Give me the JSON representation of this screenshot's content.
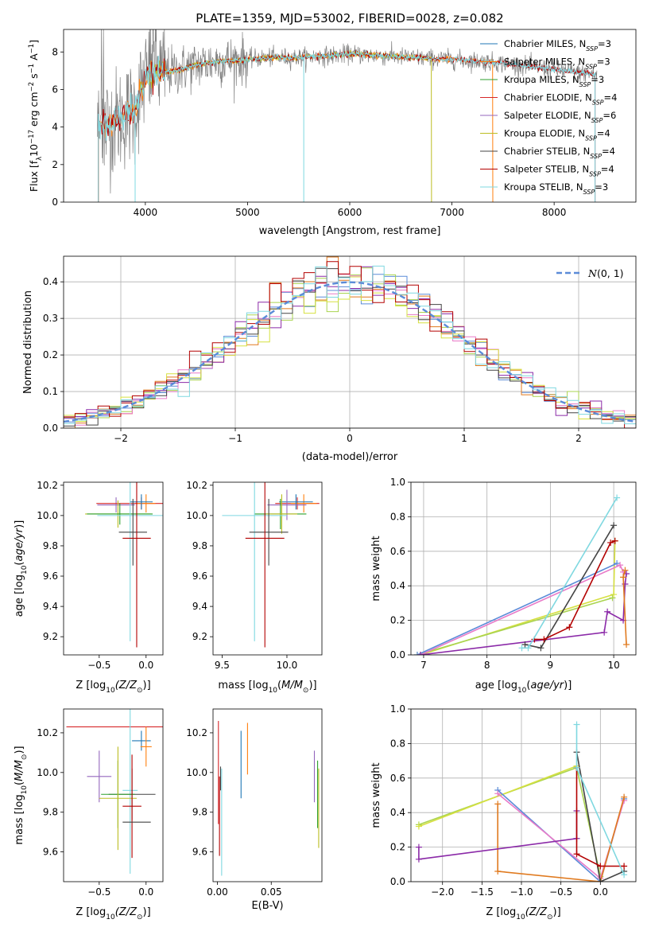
{
  "figure_title": "PLATE=1359, MJD=53002, FIBERID=0028, z=0.082",
  "colors": {
    "Chabrier MILES": "#1f77b4",
    "Salpeter MILES": "#ff7f0e",
    "Kroupa MILES": "#2ca02c",
    "Chabrier ELODIE": "#d62728",
    "Salpeter ELODIE": "#9467bd",
    "Kroupa ELODIE": "#bcbd22",
    "Chabrier STELIB": "#444444",
    "Salpeter STELIB": "#b30000",
    "Kroupa STELIB": "#7fd8e0",
    "Chabrier MILES mw": "#5b8bd8",
    "Salpeter MILES mw": "#e07a1f",
    "Kroupa MILES mw": "#aad450",
    "Chabrier ELODIE mw": "#e87ac8",
    "Salpeter ELODIE mw": "#8b2aa8",
    "Kroupa ELODIE mw": "#d6e040",
    "data": "#808080"
  },
  "chart_data": [
    {
      "id": "spectrum",
      "type": "line",
      "xlabel": "wavelength [Angstrom, rest frame]",
      "ylabel_parts": [
        "Flux [f",
        "λ",
        "10",
        "−17",
        " erg cm",
        "−2",
        " s",
        "−1",
        " A",
        "−1",
        "]"
      ],
      "xlim": [
        3200,
        8800
      ],
      "ylim": [
        0,
        9.2
      ],
      "xticks": [
        4000,
        5000,
        6000,
        7000,
        8000
      ],
      "yticks": [
        0,
        2,
        4,
        6,
        8
      ],
      "legend": [
        {
          "label": "Chabrier MILES",
          "nssp": "3"
        },
        {
          "label": "Salpeter MILES",
          "nssp": "3"
        },
        {
          "label": "Kroupa MILES",
          "nssp": "3"
        },
        {
          "label": "Chabrier ELODIE",
          "nssp": "4"
        },
        {
          "label": "Salpeter ELODIE",
          "nssp": "6"
        },
        {
          "label": "Kroupa ELODIE",
          "nssp": "4"
        },
        {
          "label": "Chabrier STELIB",
          "nssp": "4"
        },
        {
          "label": "Salpeter STELIB",
          "nssp": "4"
        },
        {
          "label": "Kroupa STELIB",
          "nssp": "3"
        }
      ],
      "legend_sub": "SSP",
      "legend_prefix": "N",
      "legend_placement": "upper right",
      "continuum": {
        "x": [
          3520,
          3600,
          3700,
          3800,
          3900,
          3950,
          4000,
          4100,
          4300,
          4500,
          4700,
          5000,
          5200,
          5500,
          5800,
          6000,
          6300,
          6600,
          7000,
          7300,
          7500,
          7800,
          8100,
          8400
        ],
        "y": [
          3.9,
          4.1,
          4.3,
          4.6,
          4.9,
          5.8,
          6.6,
          6.9,
          7.0,
          7.3,
          7.5,
          7.6,
          7.7,
          7.7,
          7.8,
          7.9,
          7.8,
          7.7,
          7.6,
          7.5,
          7.4,
          7.2,
          7.0,
          6.8
        ]
      },
      "model_ranges": {
        "MILES": [
          3540,
          7400
        ],
        "ELODIE": [
          3900,
          6800
        ],
        "STELIB": [
          3540,
          8400
        ]
      }
    },
    {
      "id": "residuals",
      "type": "histogram",
      "xlabel": "(data-model)/error",
      "ylabel": "Normed distribution",
      "xlim": [
        -2.5,
        2.5
      ],
      "ylim": [
        0,
        0.47
      ],
      "xticks": [
        -2,
        -1,
        0,
        1,
        2
      ],
      "yticks": [
        0.0,
        0.1,
        0.2,
        0.3,
        0.4
      ],
      "bin_width": 0.1,
      "legend_label": "N(0,1)",
      "grid": true
    },
    {
      "id": "age_vs_z",
      "type": "scatter",
      "xlabel": "Z [log10(Z/Z⊙)]",
      "ylabel": "age  [log10(age/yr)]",
      "xlim": [
        -0.88,
        0.18
      ],
      "ylim": [
        9.08,
        10.22
      ],
      "xticks": [
        -0.5,
        0.0
      ],
      "yticks": [
        9.2,
        9.4,
        9.6,
        9.8,
        10.0,
        10.2
      ],
      "points": [
        {
          "model": "Salpeter ELODIE",
          "x": -0.32,
          "y": 10.07,
          "xerr": 0.2,
          "yerr": 0.05
        },
        {
          "model": "Chabrier ELODIE",
          "x": -0.05,
          "y": 10.08,
          "xerr": 0.48,
          "yerr": 0.04
        },
        {
          "model": "Salpeter MILES",
          "x": 0.0,
          "y": 10.08,
          "xerr": 0.1,
          "yerr": 0.06
        },
        {
          "model": "Chabrier MILES",
          "x": -0.05,
          "y": 10.09,
          "xerr": 0.12,
          "yerr": 0.05
        },
        {
          "model": "Kroupa ELODIE",
          "x": -0.3,
          "y": 10.01,
          "xerr": 0.35,
          "yerr": 0.09
        },
        {
          "model": "Kroupa MILES",
          "x": -0.28,
          "y": 10.01,
          "xerr": 0.35,
          "yerr": 0.07
        },
        {
          "model": "Kroupa STELIB",
          "x": -0.17,
          "y": 10.0,
          "xerr": 0.35,
          "yerr": 0.83
        },
        {
          "model": "Chabrier STELIB",
          "x": -0.14,
          "y": 9.89,
          "xerr": 0.15,
          "yerr": 0.22
        },
        {
          "model": "Salpeter STELIB",
          "x": -0.1,
          "y": 9.85,
          "xerr": 0.15,
          "yerr": 0.72
        }
      ]
    },
    {
      "id": "age_vs_mass",
      "type": "scatter",
      "xlabel": "mass [log10(M/M⊙)]",
      "ylabel": "",
      "xlim": [
        9.43,
        10.27
      ],
      "ylim": [
        9.08,
        10.22
      ],
      "xticks": [
        9.5,
        10.0
      ],
      "yticks": [
        9.2,
        9.4,
        9.6,
        9.8,
        10.0,
        10.2
      ],
      "points": [
        {
          "model": "Chabrier ELODIE",
          "x": 10.08,
          "y": 10.08,
          "xerr": 0.17,
          "yerr": 0.04
        },
        {
          "model": "Salpeter MILES",
          "x": 10.13,
          "y": 10.08,
          "xerr": 0.1,
          "yerr": 0.06
        },
        {
          "model": "Chabrier MILES",
          "x": 10.07,
          "y": 10.09,
          "xerr": 0.13,
          "yerr": 0.05
        },
        {
          "model": "Salpeter ELODIE",
          "x": 10.0,
          "y": 10.07,
          "xerr": 0.15,
          "yerr": 0.1
        },
        {
          "model": "Kroupa MILES",
          "x": 9.95,
          "y": 10.01,
          "xerr": 0.2,
          "yerr": 0.1
        },
        {
          "model": "Kroupa ELODIE",
          "x": 9.96,
          "y": 10.01,
          "xerr": 0.12,
          "yerr": 0.13
        },
        {
          "model": "Kroupa STELIB",
          "x": 9.75,
          "y": 10.0,
          "xerr": 0.25,
          "yerr": 0.83
        },
        {
          "model": "Chabrier STELIB",
          "x": 9.86,
          "y": 9.89,
          "xerr": 0.15,
          "yerr": 0.22
        },
        {
          "model": "Salpeter STELIB",
          "x": 9.83,
          "y": 9.85,
          "xerr": 0.15,
          "yerr": 0.72
        }
      ]
    },
    {
      "id": "weight_vs_age",
      "type": "line",
      "xlabel": "age  [log10(age/yr)]",
      "ylabel": "mass weight",
      "xlim": [
        6.8,
        10.35
      ],
      "ylim": [
        0,
        1.0
      ],
      "xticks": [
        7,
        8,
        9,
        10
      ],
      "yticks": [
        0.0,
        0.2,
        0.4,
        0.6,
        0.8,
        1.0
      ],
      "series": [
        {
          "model": "Kroupa ELODIE mw",
          "x": [
            10.02,
            10.0,
            6.95
          ],
          "y": [
            0.66,
            0.35,
            0.0
          ]
        },
        {
          "model": "Kroupa MILES mw",
          "x": [
            9.98,
            6.9
          ],
          "y": [
            0.33,
            0.0
          ]
        },
        {
          "model": "Chabrier MILES mw",
          "x": [
            10.05,
            6.9
          ],
          "y": [
            0.53,
            0.0
          ]
        },
        {
          "model": "Chabrier ELODIE mw",
          "x": [
            10.15,
            10.1,
            6.95
          ],
          "y": [
            0.48,
            0.52,
            0.0
          ]
        },
        {
          "model": "Salpeter ELODIE mw",
          "x": [
            6.95,
            9.85,
            9.9,
            10.15,
            10.18,
            10.2
          ],
          "y": [
            0.0,
            0.13,
            0.25,
            0.2,
            0.41,
            0.47
          ]
        },
        {
          "model": "Salpeter MILES mw",
          "x": [
            10.2,
            10.15,
            10.18
          ],
          "y": [
            0.06,
            0.45,
            0.49
          ]
        },
        {
          "model": "Chabrier STELIB",
          "x": [
            8.6,
            8.85,
            10.0
          ],
          "y": [
            0.06,
            0.04,
            0.75
          ]
        },
        {
          "model": "Salpeter STELIB",
          "x": [
            8.75,
            8.9,
            9.3,
            9.95,
            10.02
          ],
          "y": [
            0.09,
            0.09,
            0.16,
            0.65,
            0.66
          ]
        },
        {
          "model": "Kroupa STELIB",
          "x": [
            8.55,
            8.65,
            10.05
          ],
          "y": [
            0.04,
            0.04,
            0.91
          ]
        }
      ]
    },
    {
      "id": "mass_vs_z",
      "type": "scatter",
      "xlabel": "Z [log10(Z/Z⊙)]",
      "ylabel": "mass [log10(M/M⊙)]",
      "xlim": [
        -0.88,
        0.18
      ],
      "ylim": [
        9.45,
        10.32
      ],
      "xticks": [
        -0.5,
        0.0
      ],
      "yticks": [
        9.6,
        9.8,
        10.0,
        10.2
      ],
      "points": [
        {
          "model": "Chabrier ELODIE",
          "x": -0.3,
          "y": 10.23,
          "xerr": 0.55,
          "yerr": 0.0
        },
        {
          "model": "Chabrier MILES",
          "x": -0.05,
          "y": 10.16,
          "xerr": 0.1,
          "yerr": 0.05
        },
        {
          "model": "Salpeter MILES",
          "x": 0.0,
          "y": 10.13,
          "xerr": 0.06,
          "yerr": 0.1
        },
        {
          "model": "Salpeter ELODIE",
          "x": -0.5,
          "y": 9.98,
          "xerr": 0.13,
          "yerr": 0.13
        },
        {
          "model": "Kroupa STELIB",
          "x": -0.17,
          "y": 9.91,
          "xerr": 0.08,
          "yerr": 0.42
        },
        {
          "model": "Chabrier STELIB",
          "x": -0.15,
          "y": 9.89,
          "xerr": 0.25,
          "yerr": 0.13
        },
        {
          "model": "Kroupa MILES",
          "x": -0.3,
          "y": 9.89,
          "xerr": 0.18,
          "yerr": 0.17
        },
        {
          "model": "Kroupa ELODIE",
          "x": -0.3,
          "y": 9.87,
          "xerr": 0.2,
          "yerr": 0.26
        },
        {
          "model": "Salpeter STELIB",
          "x": -0.15,
          "y": 9.83,
          "xerr": 0.1,
          "yerr": 0.26
        },
        {
          "model": "Chabrier STELIB",
          "x": -0.1,
          "y": 9.75,
          "xerr": 0.15,
          "yerr": 0.0
        }
      ]
    },
    {
      "id": "mass_vs_ebv",
      "type": "scatter",
      "xlabel": "E(B-V)",
      "ylabel": "",
      "xlim": [
        -0.004,
        0.097
      ],
      "ylim": [
        9.45,
        10.32
      ],
      "xticks": [
        0.0,
        0.05
      ],
      "yticks": [
        9.6,
        9.8,
        10.0,
        10.2
      ],
      "points": [
        {
          "model": "Chabrier ELODIE",
          "x": 0.001,
          "y": 10.0,
          "xerr": 0,
          "yerr": 0.26
        },
        {
          "model": "Chabrier STELIB",
          "x": 0.003,
          "y": 9.97,
          "xerr": 0,
          "yerr": 0.06
        },
        {
          "model": "Salpeter STELIB",
          "x": 0.002,
          "y": 9.78,
          "xerr": 0,
          "yerr": 0.2
        },
        {
          "model": "Kroupa STELIB",
          "x": 0.004,
          "y": 9.75,
          "xerr": 0,
          "yerr": 0.27
        },
        {
          "model": "Chabrier MILES",
          "x": 0.022,
          "y": 10.04,
          "xerr": 0,
          "yerr": 0.17
        },
        {
          "model": "Salpeter MILES",
          "x": 0.028,
          "y": 10.12,
          "xerr": 0,
          "yerr": 0.13
        },
        {
          "model": "Salpeter ELODIE",
          "x": 0.09,
          "y": 9.98,
          "xerr": 0,
          "yerr": 0.13
        },
        {
          "model": "Kroupa MILES",
          "x": 0.093,
          "y": 9.89,
          "xerr": 0,
          "yerr": 0.17
        },
        {
          "model": "Kroupa ELODIE",
          "x": 0.094,
          "y": 9.82,
          "xerr": 0,
          "yerr": 0.2
        }
      ]
    },
    {
      "id": "weight_vs_z",
      "type": "line",
      "xlabel": "Z [log10(Z/Z⊙)]",
      "ylabel": "mass weight",
      "xlim": [
        -2.4,
        0.45
      ],
      "ylim": [
        0,
        1.0
      ],
      "xticks": [
        -2.0,
        -1.5,
        -1.0,
        -0.5,
        0.0
      ],
      "yticks": [
        0.0,
        0.2,
        0.4,
        0.6,
        0.8,
        1.0
      ],
      "series": [
        {
          "model": "Kroupa MILES mw",
          "x": [
            -2.3,
            -0.3,
            0.0
          ],
          "y": [
            0.33,
            0.66,
            0.03
          ]
        },
        {
          "model": "Kroupa ELODIE mw",
          "x": [
            -2.3,
            -0.3
          ],
          "y": [
            0.32,
            0.67
          ]
        },
        {
          "model": "Chabrier MILES mw",
          "x": [
            -1.3,
            0.0,
            0.3
          ],
          "y": [
            0.53,
            0.0,
            0.48
          ]
        },
        {
          "model": "Chabrier ELODIE mw",
          "x": [
            -1.3,
            0.0,
            0.3
          ],
          "y": [
            0.51,
            0.02,
            0.47
          ]
        },
        {
          "model": "Salpeter MILES mw",
          "x": [
            -1.3,
            -1.3,
            0.0,
            0.3
          ],
          "y": [
            0.45,
            0.06,
            0.0,
            0.49
          ]
        },
        {
          "model": "Salpeter ELODIE mw",
          "x": [
            -2.3,
            -2.3,
            -0.3,
            -0.3
          ],
          "y": [
            0.2,
            0.13,
            0.25,
            0.41
          ]
        },
        {
          "model": "Chabrier STELIB",
          "x": [
            -0.3,
            0.0,
            0.3
          ],
          "y": [
            0.75,
            0.0,
            0.06
          ]
        },
        {
          "model": "Salpeter STELIB",
          "x": [
            -0.3,
            -0.3,
            0.0,
            0.3
          ],
          "y": [
            0.66,
            0.16,
            0.09,
            0.09
          ]
        },
        {
          "model": "Kroupa STELIB",
          "x": [
            -0.3,
            -0.3,
            0.3
          ],
          "y": [
            0.91,
            0.66,
            0.04
          ]
        }
      ]
    }
  ]
}
